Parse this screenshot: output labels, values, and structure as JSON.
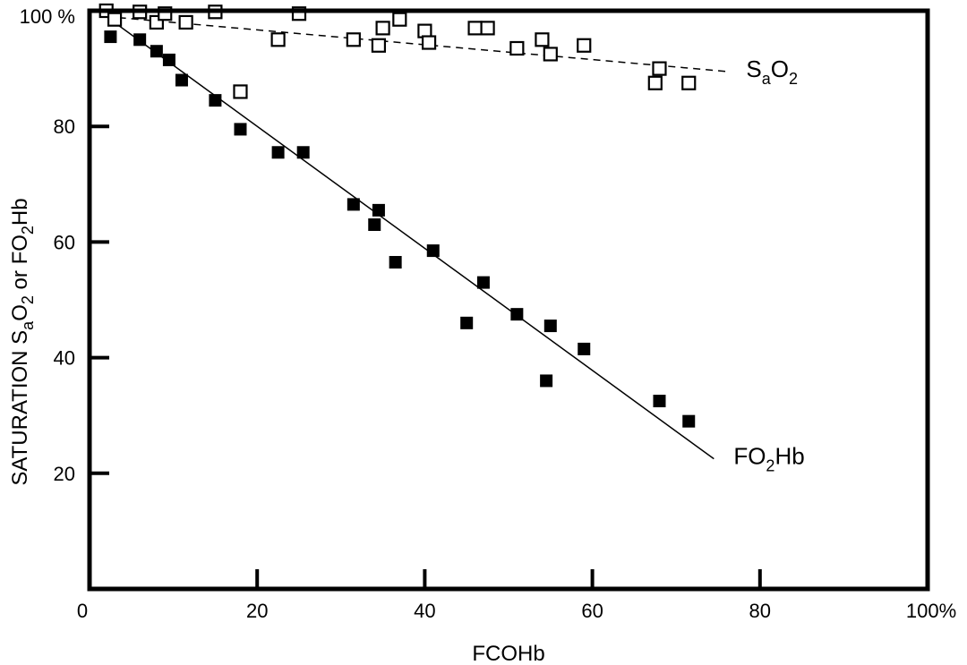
{
  "chart_data": {
    "type": "scatter",
    "xlabel": "FCOHb",
    "ylabel": {
      "parts": [
        "SATURATION S",
        "a",
        "O",
        "2",
        " or FO",
        "2",
        "Hb"
      ]
    },
    "xlim": [
      0,
      100
    ],
    "ylim": [
      0,
      100
    ],
    "x_ticks": [
      {
        "value": 0,
        "label": "0"
      },
      {
        "value": 20,
        "label": "20"
      },
      {
        "value": 40,
        "label": "40"
      },
      {
        "value": 60,
        "label": "60"
      },
      {
        "value": 80,
        "label": "80"
      },
      {
        "value": 100,
        "label": "100%"
      }
    ],
    "y_ticks": [
      {
        "value": 20,
        "label": "20"
      },
      {
        "value": 40,
        "label": "40"
      },
      {
        "value": 60,
        "label": "60"
      },
      {
        "value": 80,
        "label": "80"
      },
      {
        "value": 100,
        "label": "100 %"
      }
    ],
    "grid": false,
    "series": [
      {
        "name": "SaO2",
        "label_parts": [
          "S",
          "a",
          "O",
          "2"
        ],
        "marker": "open-square",
        "color": "#000000",
        "points": [
          [
            2,
            100
          ],
          [
            3,
            98.5
          ],
          [
            6,
            99.8
          ],
          [
            8,
            98
          ],
          [
            9,
            99.5
          ],
          [
            11.5,
            98
          ],
          [
            15,
            99.8
          ],
          [
            18,
            86
          ],
          [
            22.5,
            95
          ],
          [
            25,
            99.5
          ],
          [
            31.5,
            95
          ],
          [
            34.5,
            94
          ],
          [
            35,
            97
          ],
          [
            37,
            98.5
          ],
          [
            40,
            96.5
          ],
          [
            40.5,
            94.5
          ],
          [
            46,
            97
          ],
          [
            47.5,
            97
          ],
          [
            51,
            93.5
          ],
          [
            54,
            95
          ],
          [
            55,
            92.5
          ],
          [
            59,
            94
          ],
          [
            67.5,
            87.5
          ],
          [
            68,
            90
          ],
          [
            71.5,
            87.5
          ]
        ],
        "fit_line": {
          "x": [
            2,
            76
          ],
          "y": [
            99,
            89.5
          ],
          "style": "dashed"
        }
      },
      {
        "name": "FO2Hb",
        "label_parts": [
          "FO",
          "2",
          "Hb"
        ],
        "marker": "filled-square",
        "color": "#000000",
        "points": [
          [
            2.5,
            95.5
          ],
          [
            6,
            95
          ],
          [
            8,
            93
          ],
          [
            9.5,
            91.5
          ],
          [
            11,
            88
          ],
          [
            15,
            84.5
          ],
          [
            18,
            79.5
          ],
          [
            22.5,
            75.5
          ],
          [
            25.5,
            75.5
          ],
          [
            31.5,
            66.5
          ],
          [
            34,
            63
          ],
          [
            34.5,
            65.5
          ],
          [
            36.5,
            56.5
          ],
          [
            41,
            58.5
          ],
          [
            45,
            46
          ],
          [
            47,
            53
          ],
          [
            51,
            47.5
          ],
          [
            54.5,
            36
          ],
          [
            55,
            45.5
          ],
          [
            59,
            41.5
          ],
          [
            68,
            32.5
          ],
          [
            71.5,
            29
          ]
        ],
        "fit_line": {
          "x": [
            2,
            74.5
          ],
          "y": [
            99,
            22.5
          ],
          "style": "solid"
        }
      }
    ]
  }
}
